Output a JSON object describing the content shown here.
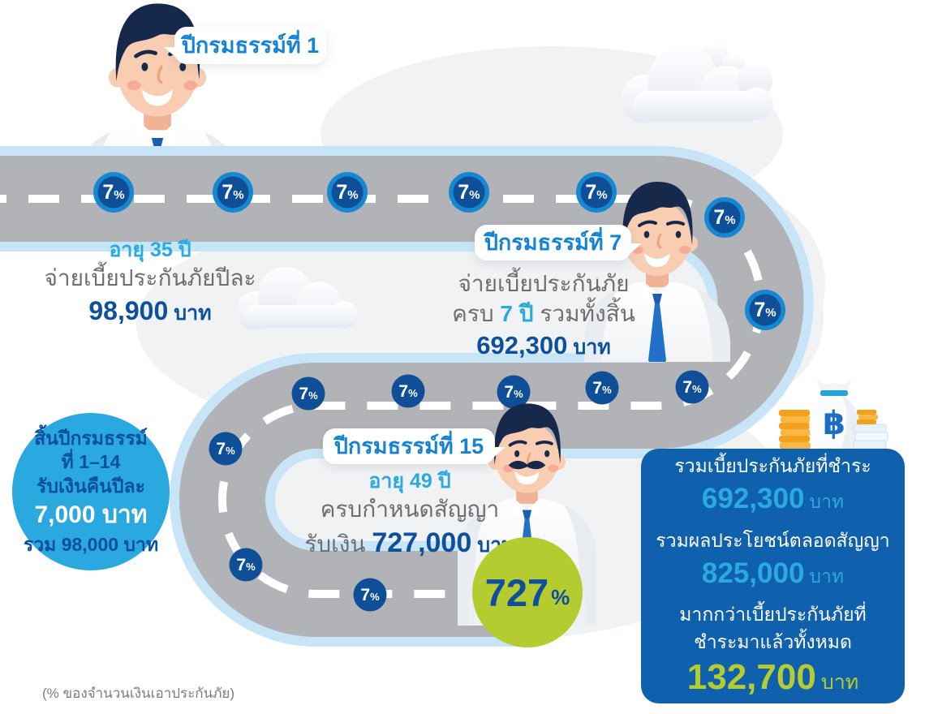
{
  "colors": {
    "road_gray": "#b2b3b6",
    "road_edge_blue": "#c7e5f6",
    "blob_gray": "#f1f2f4",
    "badge_ring": "#1688d2",
    "badge_core": "#0e4f98",
    "accent_light_blue": "#2ba9e1",
    "accent_navy": "#0d509e",
    "text_gray": "#6d6e71",
    "bubble_text_blue": "#1583d3",
    "summary_box_blue": "#0f60ad",
    "maturity_green": "#b5cc31"
  },
  "road": {
    "rate_number": "7",
    "rate_percent": "%",
    "large_badges": [
      [
        140,
        237
      ],
      [
        287,
        237
      ],
      [
        428,
        237
      ],
      [
        578,
        237
      ],
      [
        735,
        237
      ],
      [
        893,
        268
      ],
      [
        943,
        382
      ]
    ],
    "small_badges": [
      [
        853,
        477
      ],
      [
        742,
        478
      ],
      [
        633,
        483
      ],
      [
        503,
        482
      ],
      [
        380,
        485
      ],
      [
        278,
        553
      ],
      [
        303,
        696
      ],
      [
        456,
        733
      ]
    ]
  },
  "milestone_year1": {
    "bubble": "ปีกรมธรรม์ที่ 1",
    "age": "อายุ 35 ปี",
    "line1": "จ่ายเบี้ยประกันภัยปีละ",
    "amount": "98,900",
    "unit": "บาท"
  },
  "milestone_year7": {
    "bubble": "ปีกรมธรรม์ที่ 7",
    "line1": "จ่ายเบี้ยประกันภัย",
    "line2_prefix": "ครบ ",
    "line2_highlight": "7 ปี",
    "line2_suffix": " รวมทั้งสิ้น",
    "amount": "692,300",
    "unit": "บาท"
  },
  "milestone_year15": {
    "bubble": "ปีกรมธรรม์ที่ 15",
    "age": "อายุ 49 ปี",
    "line1": "ครบกำหนดสัญญา",
    "line2_prefix": "รับเงิน ",
    "amount": "727,000",
    "unit": "บาท"
  },
  "cashback_circle": {
    "line1": "สิ้นปีกรมธรรม์",
    "line2": "ที่ 1–14",
    "line3": "รับเงินคืนปีละ",
    "amount": "7,000 บาท",
    "total": "รวม 98,000 บาท"
  },
  "maturity_circle": {
    "value": "727",
    "percent": "%"
  },
  "summary_box": {
    "item1_label": "รวมเบี้ยประกันภัยที่ชำระ",
    "item1_value": "692,300",
    "item1_unit": "บาท",
    "item2_label": "รวมผลประโยชน์ตลอดสัญญา",
    "item2_value": "825,000",
    "item2_unit": "บาท",
    "item3_label_line1": "มากกว่าเบี้ยประกันภัยที่",
    "item3_label_line2": "ชำระมาแล้วทั้งหมด",
    "item3_value": "132,700",
    "item3_unit": "บาท"
  },
  "footnote": "(% ของจำนวนเงินเอาประกันภัย)",
  "currency_symbol": "฿"
}
